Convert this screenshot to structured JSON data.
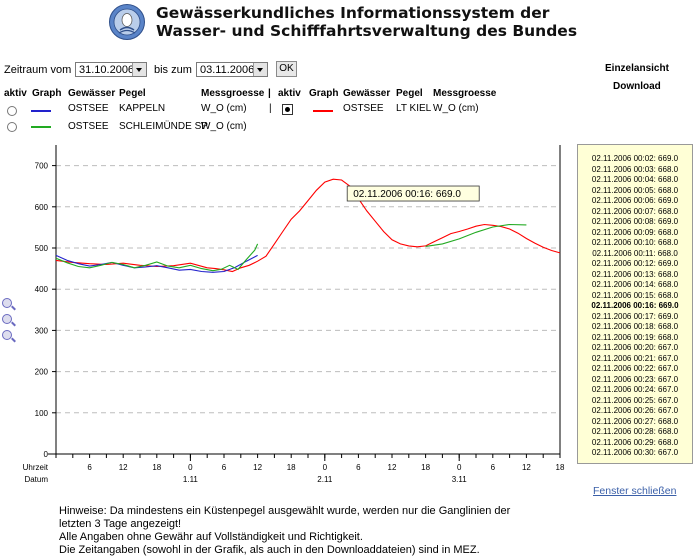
{
  "header": {
    "title_line1": "Gewässerkundliches Informationssystem der",
    "title_line2": "Wasser- und Schifffahrtsverwaltung des Bundes"
  },
  "range": {
    "label_from": "Zeitraum vom",
    "from_value": "31.10.2006",
    "label_to": "bis zum",
    "to_value": "03.11.2006",
    "ok_label": "OK"
  },
  "side": {
    "single_view": "Einzelansicht",
    "download": "Download",
    "close": "Fenster schließen"
  },
  "legend": {
    "headers": [
      "aktiv",
      "Graph",
      "Gewässer",
      "Pegel",
      "Messgroesse"
    ],
    "separator": "|",
    "rows": [
      {
        "water": "OSTSEE",
        "station": "KAPPELN",
        "measure": "W_O (cm)",
        "color": "#2222cc",
        "active": false
      },
      {
        "water": "OSTSEE",
        "station": "SCHLEIMÜNDE SP",
        "measure": "W_O (cm)",
        "color": "#22aa22",
        "active": false
      }
    ],
    "right_row": {
      "water": "OSTSEE",
      "station": "LT KIEL",
      "measure": "W_O (cm)",
      "color": "#ff0000",
      "active": true
    }
  },
  "chart_data": {
    "type": "line",
    "ylim": [
      0,
      750
    ],
    "y_ticks": [
      0,
      100,
      200,
      300,
      400,
      500,
      600,
      700
    ],
    "xlim": [
      0,
      90
    ],
    "x_unit": "hours since 31.10.2006 00:00",
    "x_row1_label": "Uhrzeit",
    "x_row2_label": "Datum",
    "hour_ticks": [
      {
        "x": 6,
        "label": "6"
      },
      {
        "x": 12,
        "label": "12"
      },
      {
        "x": 18,
        "label": "18"
      },
      {
        "x": 24,
        "label": "0"
      },
      {
        "x": 30,
        "label": "6"
      },
      {
        "x": 36,
        "label": "12"
      },
      {
        "x": 42,
        "label": "18"
      },
      {
        "x": 48,
        "label": "0"
      },
      {
        "x": 54,
        "label": "6"
      },
      {
        "x": 60,
        "label": "12"
      },
      {
        "x": 66,
        "label": "18"
      },
      {
        "x": 72,
        "label": "0"
      },
      {
        "x": 78,
        "label": "6"
      },
      {
        "x": 84,
        "label": "12"
      },
      {
        "x": 90,
        "label": "18"
      }
    ],
    "date_ticks": [
      {
        "x": 24,
        "label": "1.11"
      },
      {
        "x": 48,
        "label": "2.11"
      },
      {
        "x": 72,
        "label": "3.11"
      }
    ],
    "tooltip": "02.11.2006 00:16: 669.0",
    "series": [
      {
        "name": "LT KIEL",
        "color": "#ff0000",
        "x": [
          0,
          3,
          6,
          9,
          12,
          15,
          18,
          21,
          24,
          27,
          28.5,
          30,
          31.5,
          33,
          34.5,
          36,
          37.5,
          39,
          40.5,
          42,
          43.5,
          45,
          46.5,
          48,
          49.5,
          51,
          52.5,
          54,
          55.5,
          57,
          58.5,
          60,
          61.5,
          63,
          64.5,
          66,
          67.5,
          69,
          70.5,
          72,
          73.5,
          75,
          76.5,
          78,
          79.5,
          81,
          82.5,
          84,
          85.5,
          87,
          88.5,
          90
        ],
        "y": [
          470,
          465,
          462,
          460,
          463,
          458,
          455,
          457,
          463,
          452,
          450,
          447,
          443,
          452,
          458,
          468,
          480,
          510,
          540,
          570,
          590,
          615,
          640,
          660,
          667,
          665,
          650,
          620,
          590,
          565,
          540,
          520,
          510,
          505,
          503,
          505,
          515,
          525,
          535,
          540,
          546,
          553,
          557,
          555,
          552,
          546,
          536,
          523,
          512,
          502,
          494,
          488
        ]
      },
      {
        "name": "KAPPELN",
        "color": "#2222cc",
        "x": [
          0,
          2,
          4,
          6,
          8,
          10,
          12,
          14,
          16,
          18,
          20,
          22,
          24,
          26,
          28,
          30,
          32,
          34,
          36
        ],
        "y": [
          482,
          470,
          462,
          456,
          460,
          465,
          458,
          452,
          454,
          457,
          452,
          446,
          448,
          443,
          441,
          443,
          453,
          468,
          482
        ]
      },
      {
        "name": "SCHLEIMÜNDE SP",
        "color": "#22aa22",
        "x": [
          0,
          2,
          4,
          6,
          8,
          10,
          12,
          14,
          16,
          18,
          20,
          22,
          24,
          26,
          28,
          29.5,
          31,
          32.5,
          34,
          35.5,
          36,
          66,
          69,
          72,
          75,
          78,
          81,
          84
        ],
        "y": [
          475,
          464,
          455,
          452,
          458,
          465,
          460,
          452,
          458,
          466,
          456,
          452,
          458,
          450,
          445,
          448,
          458,
          448,
          472,
          495,
          510,
          504,
          510,
          522,
          538,
          551,
          557,
          556
        ]
      }
    ]
  },
  "value_list": [
    "02.11.2006 00:02: 669.0",
    "02.11.2006 00:03: 668.0",
    "02.11.2006 00:04: 668.0",
    "02.11.2006 00:05: 668.0",
    "02.11.2006 00:06: 669.0",
    "02.11.2006 00:07: 668.0",
    "02.11.2006 00:08: 669.0",
    "02.11.2006 00:09: 668.0",
    "02.11.2006 00:10: 668.0",
    "02.11.2006 00:11: 668.0",
    "02.11.2006 00:12: 669.0",
    "02.11.2006 00:13: 668.0",
    "02.11.2006 00:14: 668.0",
    "02.11.2006 00:15: 668.0",
    "02.11.2006 00:16: 669.0",
    "02.11.2006 00:17: 669.0",
    "02.11.2006 00:18: 668.0",
    "02.11.2006 00:19: 668.0",
    "02.11.2006 00:20: 667.0",
    "02.11.2006 00:21: 667.0",
    "02.11.2006 00:22: 667.0",
    "02.11.2006 00:23: 667.0",
    "02.11.2006 00:24: 667.0",
    "02.11.2006 00:25: 667.0",
    "02.11.2006 00:26: 667.0",
    "02.11.2006 00:27: 668.0",
    "02.11.2006 00:28: 668.0",
    "02.11.2006 00:29: 668.0",
    "02.11.2006 00:30: 667.0"
  ],
  "value_list_highlight": 14,
  "notes": [
    "Hinweise: Da mindestens ein Küstenpegel ausgewählt wurde, werden nur die Ganglinien der",
    "letzten 3 Tage angezeigt!",
    "Alle Angaben ohne Gewähr auf Vollständigkeit und Richtigkeit.",
    "Die Zeitangaben (sowohl in der Grafik, als auch in den Downloaddateien) sind in MEZ."
  ]
}
